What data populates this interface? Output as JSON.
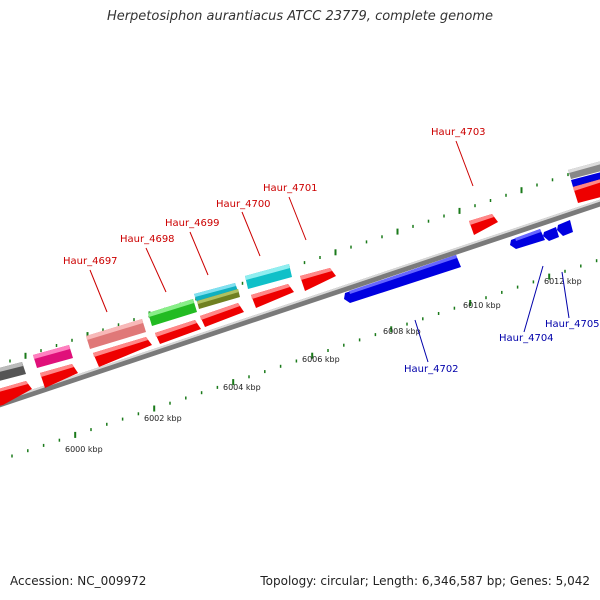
{
  "title": "Herpetosiphon aurantiacus ATCC 23779, complete genome",
  "footer": {
    "accession": "Accession: NC_009972",
    "summary": "Topology: circular; Length: 6,346,587 bp; Genes: 5,042"
  },
  "colors": {
    "forward_gene": "#ff0000",
    "reverse_gene": "#0000ee",
    "forward_label": "#cc0000",
    "reverse_label": "#0000aa",
    "backbone": "#888888",
    "tick": "#1a7a1a"
  },
  "chart_data": {
    "type": "genome-map",
    "scale_unit": "kbp",
    "tick_labels": [
      "6000 kbp",
      "6002 kbp",
      "6004 kbp",
      "6006 kbp",
      "6008 kbp",
      "6010 kbp",
      "6012 kbp"
    ],
    "gene_labels": [
      {
        "name": "Haur_4697",
        "strand": "forward"
      },
      {
        "name": "Haur_4698",
        "strand": "forward"
      },
      {
        "name": "Haur_4699",
        "strand": "forward"
      },
      {
        "name": "Haur_4700",
        "strand": "forward"
      },
      {
        "name": "Haur_4701",
        "strand": "forward"
      },
      {
        "name": "Haur_4703",
        "strand": "forward"
      },
      {
        "name": "Haur_4702",
        "strand": "reverse"
      },
      {
        "name": "Haur_4704",
        "strand": "reverse"
      },
      {
        "name": "Haur_4705",
        "strand": "reverse"
      }
    ]
  }
}
